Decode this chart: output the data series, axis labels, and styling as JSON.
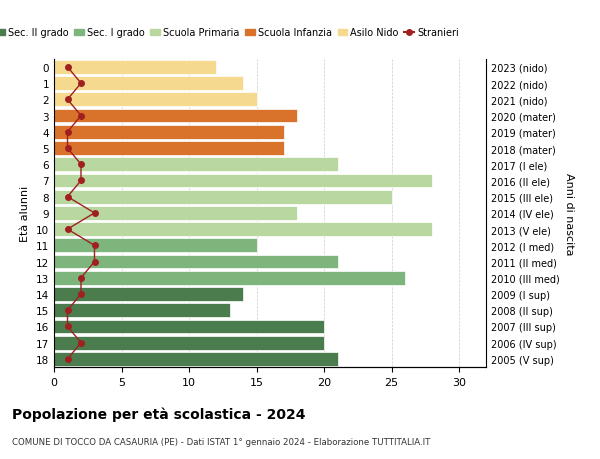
{
  "ages": [
    18,
    17,
    16,
    15,
    14,
    13,
    12,
    11,
    10,
    9,
    8,
    7,
    6,
    5,
    4,
    3,
    2,
    1,
    0
  ],
  "years": [
    "2005 (V sup)",
    "2006 (IV sup)",
    "2007 (III sup)",
    "2008 (II sup)",
    "2009 (I sup)",
    "2010 (III med)",
    "2011 (II med)",
    "2012 (I med)",
    "2013 (V ele)",
    "2014 (IV ele)",
    "2015 (III ele)",
    "2016 (II ele)",
    "2017 (I ele)",
    "2018 (mater)",
    "2019 (mater)",
    "2020 (mater)",
    "2021 (nido)",
    "2022 (nido)",
    "2023 (nido)"
  ],
  "values": [
    21,
    20,
    20,
    13,
    14,
    26,
    21,
    15,
    28,
    18,
    25,
    28,
    21,
    17,
    17,
    18,
    15,
    14,
    12
  ],
  "stranieri": [
    1,
    2,
    1,
    1,
    2,
    2,
    3,
    3,
    1,
    3,
    1,
    2,
    2,
    1,
    1,
    2,
    1,
    2,
    1
  ],
  "bar_colors": [
    "#4a7c4e",
    "#4a7c4e",
    "#4a7c4e",
    "#4a7c4e",
    "#4a7c4e",
    "#7db57d",
    "#7db57d",
    "#7db57d",
    "#b8d8a0",
    "#b8d8a0",
    "#b8d8a0",
    "#b8d8a0",
    "#b8d8a0",
    "#d9722b",
    "#d9722b",
    "#d9722b",
    "#f5d98e",
    "#f5d98e",
    "#f5d98e"
  ],
  "legend_labels": [
    "Sec. II grado",
    "Sec. I grado",
    "Scuola Primaria",
    "Scuola Infanzia",
    "Asilo Nido",
    "Stranieri"
  ],
  "legend_colors": [
    "#4a7c4e",
    "#7db57d",
    "#b8d8a0",
    "#d9722b",
    "#f5d98e",
    "#a02020"
  ],
  "ylabel_left": "Età alunni",
  "ylabel_right": "Anni di nascita",
  "title": "Popolazione per età scolastica - 2024",
  "subtitle": "COMUNE DI TOCCO DA CASAURIA (PE) - Dati ISTAT 1° gennaio 2024 - Elaborazione TUTTITALIA.IT",
  "xlim": [
    0,
    32
  ],
  "stranieri_color": "#a02020",
  "bg_color": "#ffffff",
  "grid_color": "#cccccc"
}
